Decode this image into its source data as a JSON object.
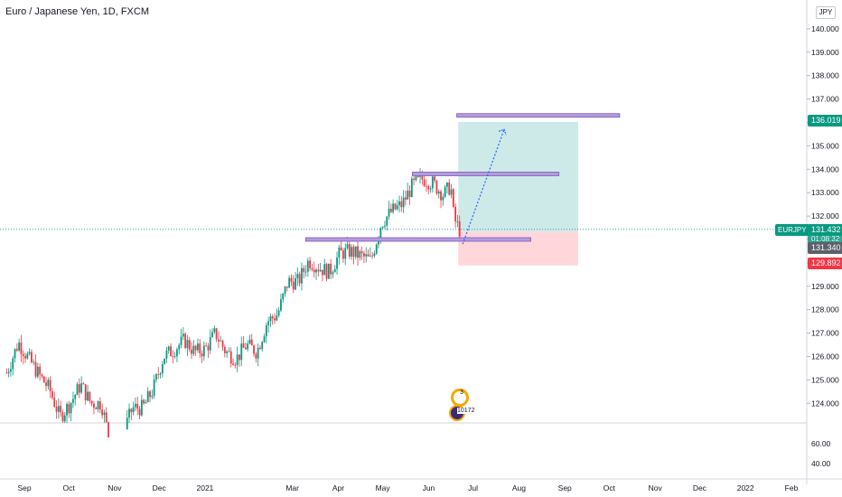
{
  "chart": {
    "title": "Euro / Japanese Yen, 1D, FXCM",
    "currency": "JPY",
    "symbol": "EURJPY",
    "countdown": "01:08:32"
  },
  "chart_data": {
    "type": "candlestick",
    "x_ticks": [
      "Sep",
      "Oct",
      "Nov",
      "Dec",
      "2021",
      "Mar",
      "Apr",
      "May",
      "Jun",
      "Jul",
      "Aug",
      "Sep",
      "Oct",
      "Nov",
      "Dec",
      "2022",
      "Feb"
    ],
    "y_ticks": [
      "124.000",
      "125.000",
      "126.000",
      "127.000",
      "128.000",
      "129.000",
      "130.000",
      "131.000",
      "132.000",
      "133.000",
      "134.000",
      "135.000",
      "136.000",
      "137.000",
      "138.000",
      "139.000",
      "140.000"
    ],
    "y_range": [
      123.0,
      141.0
    ],
    "indicator_ticks": [
      "60.00",
      "40.00"
    ],
    "price_labels": {
      "target": "136.019",
      "current": "131.432",
      "entry": "131.340",
      "stop": "129.892"
    },
    "trade": {
      "direction": "long",
      "entry": 131.34,
      "target": 136.019,
      "stop": 129.892,
      "start": "2021-06-21",
      "end": "2021-09-10",
      "projected_path": [
        {
          "date": "2021-06-24",
          "price": 130.8
        },
        {
          "date": "2021-07-22",
          "price": 135.7
        }
      ]
    },
    "horizontal_levels": [
      {
        "price": 136.3,
        "from": "2021-06-20",
        "to": "2021-10-08"
      },
      {
        "price": 133.8,
        "from": "2021-05-21",
        "to": "2021-08-28"
      },
      {
        "price": 131.0,
        "from": "2021-03-10",
        "to": "2021-08-09"
      }
    ],
    "price_path": [
      {
        "date": "2020-08-20",
        "close": 125.3
      },
      {
        "date": "2020-08-28",
        "close": 126.6
      },
      {
        "date": "2020-09-04",
        "close": 125.9
      },
      {
        "date": "2020-09-11",
        "close": 125.2
      },
      {
        "date": "2020-09-18",
        "close": 124.6
      },
      {
        "date": "2020-09-25",
        "close": 123.4
      },
      {
        "date": "2020-10-02",
        "close": 124.0
      },
      {
        "date": "2020-10-09",
        "close": 124.8
      },
      {
        "date": "2020-10-16",
        "close": 124.0
      },
      {
        "date": "2020-10-23",
        "close": 124.0
      },
      {
        "date": "2020-10-30",
        "close": 122.0
      },
      {
        "date": "2020-11-06",
        "close": 122.6
      },
      {
        "date": "2020-11-13",
        "close": 123.8
      },
      {
        "date": "2020-11-20",
        "close": 123.8
      },
      {
        "date": "2020-11-27",
        "close": 124.6
      },
      {
        "date": "2020-12-04",
        "close": 126.0
      },
      {
        "date": "2020-12-11",
        "close": 126.3
      },
      {
        "date": "2020-12-18",
        "close": 126.7
      },
      {
        "date": "2020-12-25",
        "close": 126.2
      },
      {
        "date": "2021-01-01",
        "close": 126.3
      },
      {
        "date": "2021-01-08",
        "close": 127.0
      },
      {
        "date": "2021-01-15",
        "close": 126.2
      },
      {
        "date": "2021-01-22",
        "close": 125.9
      },
      {
        "date": "2021-01-29",
        "close": 126.5
      },
      {
        "date": "2021-02-05",
        "close": 126.2
      },
      {
        "date": "2021-02-12",
        "close": 127.5
      },
      {
        "date": "2021-02-19",
        "close": 127.8
      },
      {
        "date": "2021-02-26",
        "close": 129.2
      },
      {
        "date": "2021-03-05",
        "close": 129.2
      },
      {
        "date": "2021-03-12",
        "close": 130.1
      },
      {
        "date": "2021-03-19",
        "close": 129.8
      },
      {
        "date": "2021-03-26",
        "close": 129.6
      },
      {
        "date": "2021-04-02",
        "close": 130.4
      },
      {
        "date": "2021-04-09",
        "close": 130.5
      },
      {
        "date": "2021-04-16",
        "close": 130.3
      },
      {
        "date": "2021-04-23",
        "close": 130.1
      },
      {
        "date": "2021-04-30",
        "close": 131.7
      },
      {
        "date": "2021-05-07",
        "close": 132.2
      },
      {
        "date": "2021-05-14",
        "close": 132.5
      },
      {
        "date": "2021-05-21",
        "close": 133.3
      },
      {
        "date": "2021-05-28",
        "close": 133.6
      },
      {
        "date": "2021-06-04",
        "close": 133.4
      },
      {
        "date": "2021-06-11",
        "close": 132.9
      },
      {
        "date": "2021-06-16",
        "close": 133.3
      },
      {
        "date": "2021-06-18",
        "close": 131.9
      },
      {
        "date": "2021-06-22",
        "close": 131.4
      }
    ],
    "colors": {
      "up": "#089981",
      "down": "#f23645",
      "target_zone": "#b2dfdb",
      "stop_zone": "#ffcdd2",
      "level": "#b39ddb",
      "projection": "#2962ff"
    }
  },
  "idea_badge": {
    "top": "3",
    "bottom": "10172"
  }
}
